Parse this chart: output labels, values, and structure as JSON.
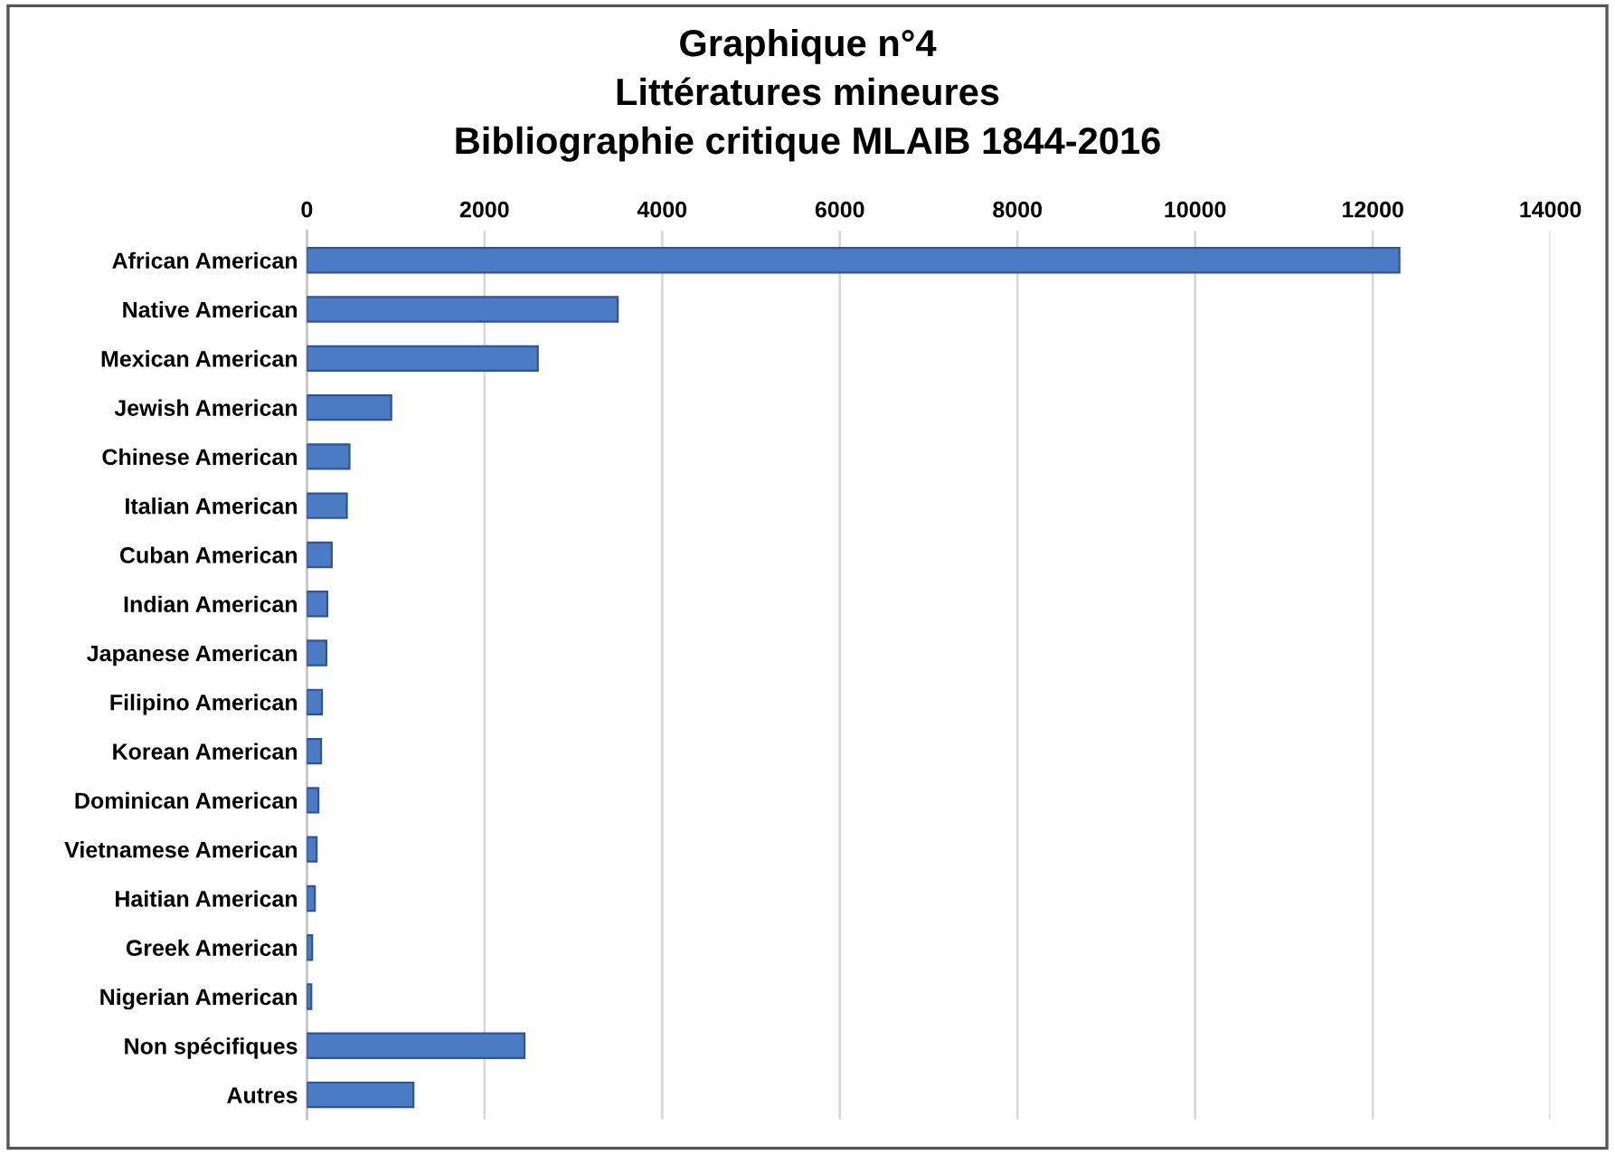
{
  "chart_data": {
    "type": "bar",
    "orientation": "horizontal",
    "title": "Graphique n°4\nLittératures mineures\nBibliographie critique MLAIB 1844-2016",
    "categories": [
      "African American",
      "Native American",
      "Mexican American",
      "Jewish American",
      "Chinese American",
      "Italian American",
      "Cuban American",
      "Indian American",
      "Japanese American",
      "Filipino American",
      "Korean American",
      "Dominican American",
      "Vietnamese American",
      "Haitian American",
      "Greek American",
      "Nigerian American",
      "Non spécifiques",
      "Autres"
    ],
    "values": [
      12300,
      3500,
      2600,
      950,
      480,
      450,
      280,
      230,
      220,
      170,
      160,
      130,
      110,
      90,
      60,
      50,
      2450,
      1200
    ],
    "color": "#4a7bc4",
    "xlim": [
      0,
      14000
    ],
    "xticks": [
      0,
      2000,
      4000,
      6000,
      8000,
      10000,
      12000,
      14000
    ],
    "grid": "x",
    "legend": false
  }
}
